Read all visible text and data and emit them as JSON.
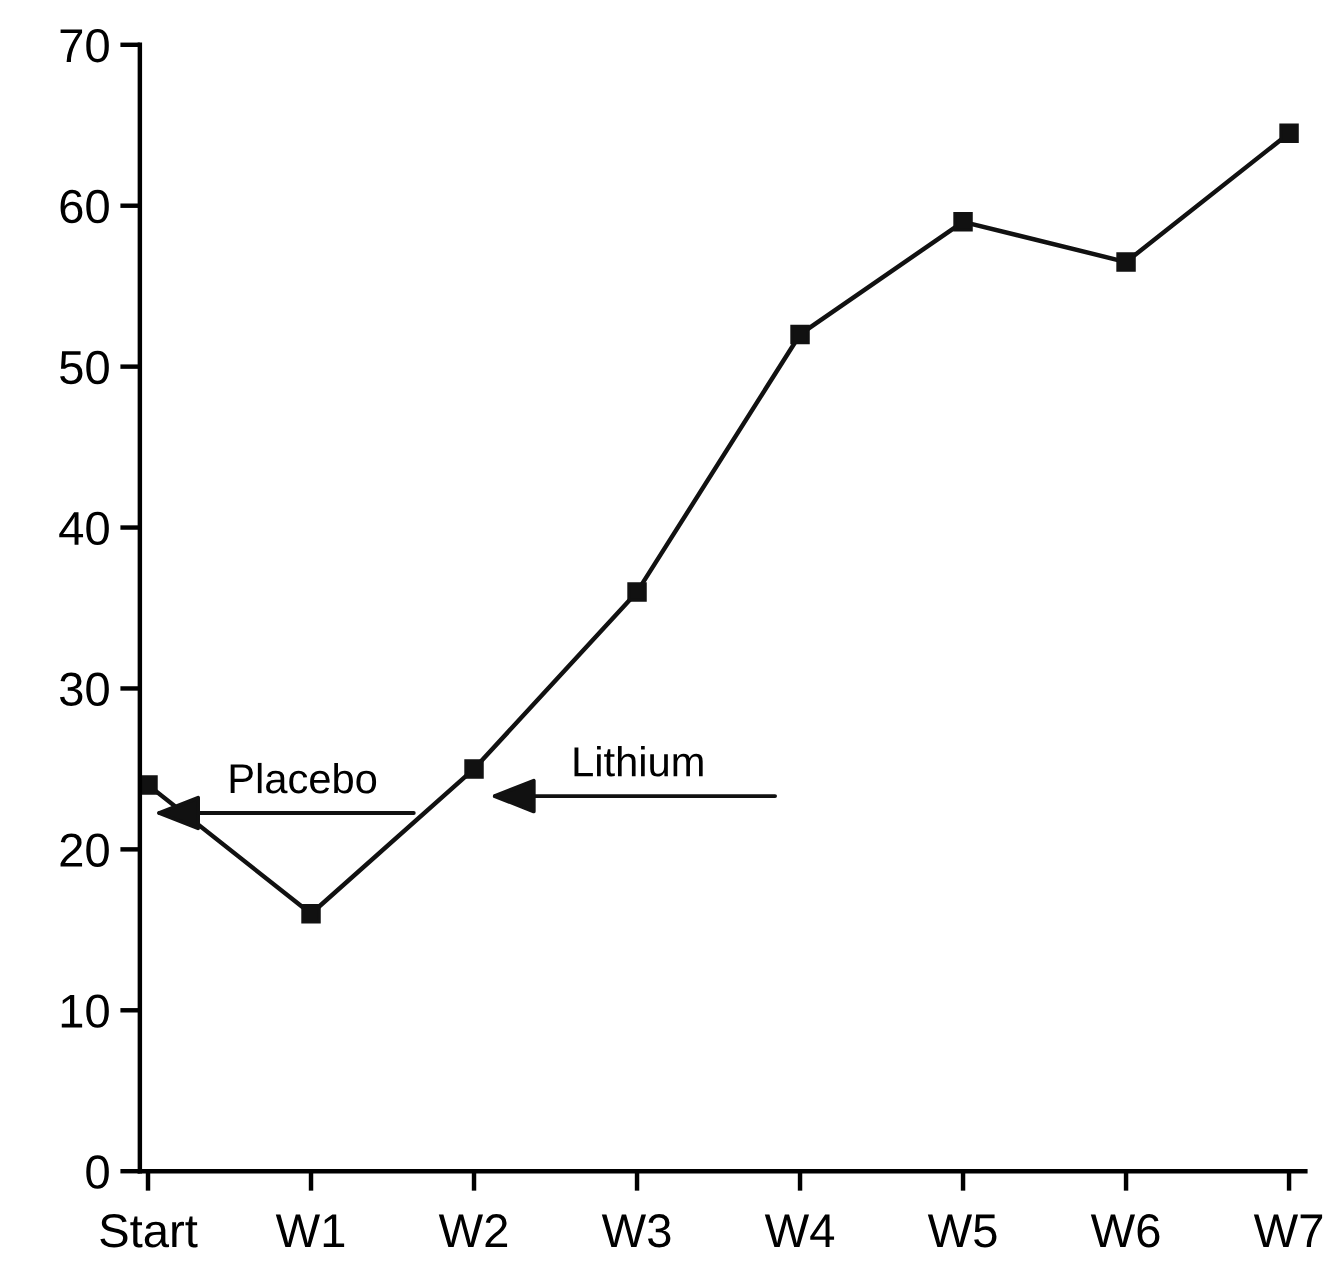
{
  "chart_data": {
    "type": "line",
    "categories": [
      "Start",
      "W1",
      "W2",
      "W3",
      "W4",
      "W5",
      "W6",
      "W7"
    ],
    "series": [
      {
        "color": "#111111",
        "values": [
          24,
          16,
          25,
          36,
          52,
          59,
          56.5,
          64.5
        ]
      }
    ],
    "ylim": [
      0,
      70
    ],
    "yticks": [
      0,
      10,
      20,
      30,
      40,
      50,
      60,
      70
    ],
    "marker": "square",
    "line_style": "solid",
    "grid": false,
    "legend": false,
    "annotations": [
      "Placebo",
      "Lithium"
    ]
  }
}
